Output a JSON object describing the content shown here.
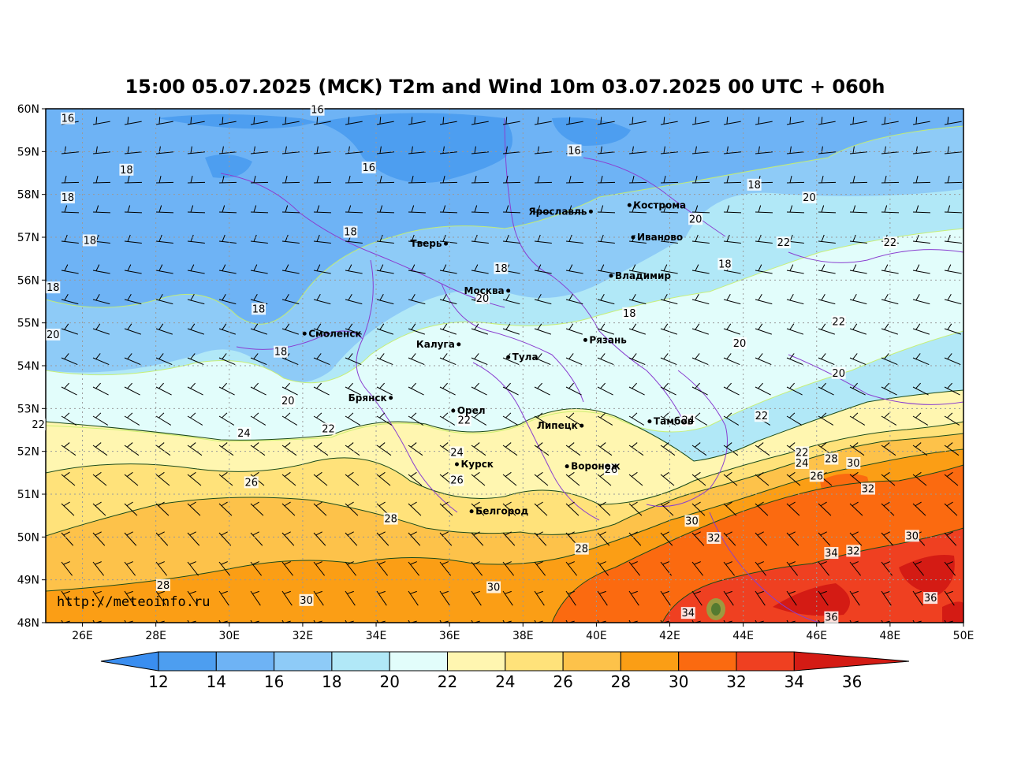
{
  "title": "15:00 05.07.2025 (MCK) T2m and Wind 10m 03.07.2025 00 UTC + 060h",
  "watermark": "http://meteoinfo.ru",
  "axes": {
    "lon_range": [
      25,
      50
    ],
    "lat_range": [
      48,
      60
    ],
    "lon_ticks": [
      "26E",
      "28E",
      "30E",
      "32E",
      "34E",
      "36E",
      "38E",
      "40E",
      "42E",
      "44E",
      "46E",
      "48E",
      "50E"
    ],
    "lat_ticks": [
      "48N",
      "49N",
      "50N",
      "51N",
      "52N",
      "53N",
      "54N",
      "55N",
      "56N",
      "57N",
      "58N",
      "59N",
      "60N"
    ],
    "grid": true
  },
  "colorbar": {
    "labels": [
      "12",
      "14",
      "16",
      "18",
      "20",
      "22",
      "24",
      "26",
      "28",
      "30",
      "32",
      "34",
      "36"
    ],
    "colors": [
      "#3a8ef0",
      "#4d9ef0",
      "#6eb3f5",
      "#8ecbf7",
      "#b1e8f7",
      "#e2fdfb",
      "#fff6b0",
      "#ffe27a",
      "#fdc24a",
      "#fb9e15",
      "#fb6a10",
      "#ef4021",
      "#d41b14"
    ],
    "extend": "both"
  },
  "cities": [
    {
      "name": "Кострома",
      "lon": 40.9,
      "lat": 57.75
    },
    {
      "name": "Ярославль",
      "lon": 39.85,
      "lat": 57.6
    },
    {
      "name": "Иваново",
      "lon": 41.0,
      "lat": 57.0
    },
    {
      "name": "Тверь",
      "lon": 35.9,
      "lat": 56.85
    },
    {
      "name": "Владимир",
      "lon": 40.4,
      "lat": 56.1
    },
    {
      "name": "Москва",
      "lon": 37.6,
      "lat": 55.75
    },
    {
      "name": "Смоленск",
      "lon": 32.05,
      "lat": 54.75
    },
    {
      "name": "Калуга",
      "lon": 36.25,
      "lat": 54.5
    },
    {
      "name": "Рязань",
      "lon": 39.7,
      "lat": 54.6
    },
    {
      "name": "Тула",
      "lon": 37.6,
      "lat": 54.2
    },
    {
      "name": "Брянск",
      "lon": 34.4,
      "lat": 53.25
    },
    {
      "name": "Орел",
      "lon": 36.1,
      "lat": 52.95
    },
    {
      "name": "Липецк",
      "lon": 39.6,
      "lat": 52.6
    },
    {
      "name": "Тамбов",
      "lon": 41.45,
      "lat": 52.7
    },
    {
      "name": "Курск",
      "lon": 36.2,
      "lat": 51.7
    },
    {
      "name": "Воронеж",
      "lon": 39.2,
      "lat": 51.65
    },
    {
      "name": "Белгород",
      "lon": 36.6,
      "lat": 50.6
    }
  ],
  "contour_labels": [
    {
      "t": "16",
      "lon": 25.6,
      "lat": 59.75
    },
    {
      "t": "16",
      "lon": 32.4,
      "lat": 59.95
    },
    {
      "t": "16",
      "lon": 33.8,
      "lat": 58.6
    },
    {
      "t": "16",
      "lon": 39.4,
      "lat": 59.0
    },
    {
      "t": "18",
      "lon": 27.2,
      "lat": 58.55
    },
    {
      "t": "18",
      "lon": 25.6,
      "lat": 57.9
    },
    {
      "t": "18",
      "lon": 26.2,
      "lat": 56.9
    },
    {
      "t": "18",
      "lon": 33.3,
      "lat": 57.1
    },
    {
      "t": "18",
      "lon": 37.4,
      "lat": 56.25
    },
    {
      "t": "18",
      "lon": 25.2,
      "lat": 55.8
    },
    {
      "t": "18",
      "lon": 30.8,
      "lat": 55.3
    },
    {
      "t": "18",
      "lon": 31.4,
      "lat": 54.3
    },
    {
      "t": "18",
      "lon": 40.9,
      "lat": 55.2
    },
    {
      "t": "18",
      "lon": 43.5,
      "lat": 56.35
    },
    {
      "t": "18",
      "lon": 44.3,
      "lat": 58.2
    },
    {
      "t": "20",
      "lon": 36.9,
      "lat": 55.55
    },
    {
      "t": "20",
      "lon": 42.7,
      "lat": 57.4
    },
    {
      "t": "20",
      "lon": 45.8,
      "lat": 57.9
    },
    {
      "t": "20",
      "lon": 25.2,
      "lat": 54.7
    },
    {
      "t": "20",
      "lon": 31.6,
      "lat": 53.15
    },
    {
      "t": "20",
      "lon": 43.9,
      "lat": 54.5
    },
    {
      "t": "20",
      "lon": 46.6,
      "lat": 53.8
    },
    {
      "t": "22",
      "lon": 24.8,
      "lat": 52.6
    },
    {
      "t": "22",
      "lon": 32.7,
      "lat": 52.5
    },
    {
      "t": "22",
      "lon": 36.4,
      "lat": 52.7
    },
    {
      "t": "22",
      "lon": 44.5,
      "lat": 52.8
    },
    {
      "t": "22",
      "lon": 45.1,
      "lat": 56.85
    },
    {
      "t": "22",
      "lon": 48.0,
      "lat": 56.85
    },
    {
      "t": "22",
      "lon": 46.6,
      "lat": 55.0
    },
    {
      "t": "22",
      "lon": 45.6,
      "lat": 51.95
    },
    {
      "t": "24",
      "lon": 30.4,
      "lat": 52.4
    },
    {
      "t": "24",
      "lon": 36.2,
      "lat": 51.95
    },
    {
      "t": "24",
      "lon": 42.5,
      "lat": 52.7
    },
    {
      "t": "24",
      "lon": 45.6,
      "lat": 51.7
    },
    {
      "t": "26",
      "lon": 30.6,
      "lat": 51.25
    },
    {
      "t": "26",
      "lon": 36.2,
      "lat": 51.3
    },
    {
      "t": "26",
      "lon": 40.4,
      "lat": 51.55
    },
    {
      "t": "26",
      "lon": 46.0,
      "lat": 51.4
    },
    {
      "t": "28",
      "lon": 34.4,
      "lat": 50.4
    },
    {
      "t": "28",
      "lon": 28.2,
      "lat": 48.85
    },
    {
      "t": "28",
      "lon": 39.6,
      "lat": 49.7
    },
    {
      "t": "28",
      "lon": 46.4,
      "lat": 51.8
    },
    {
      "t": "30",
      "lon": 32.1,
      "lat": 48.5
    },
    {
      "t": "30",
      "lon": 37.2,
      "lat": 48.8
    },
    {
      "t": "30",
      "lon": 42.6,
      "lat": 50.35
    },
    {
      "t": "30",
      "lon": 47.0,
      "lat": 51.7
    },
    {
      "t": "30",
      "lon": 48.6,
      "lat": 50.0
    },
    {
      "t": "32",
      "lon": 43.2,
      "lat": 49.95
    },
    {
      "t": "32",
      "lon": 47.4,
      "lat": 51.1
    },
    {
      "t": "32",
      "lon": 47.0,
      "lat": 49.65
    },
    {
      "t": "34",
      "lon": 42.5,
      "lat": 48.2
    },
    {
      "t": "34",
      "lon": 46.4,
      "lat": 49.6
    },
    {
      "t": "36",
      "lon": 46.4,
      "lat": 48.1
    },
    {
      "t": "36",
      "lon": 49.1,
      "lat": 48.55
    }
  ]
}
